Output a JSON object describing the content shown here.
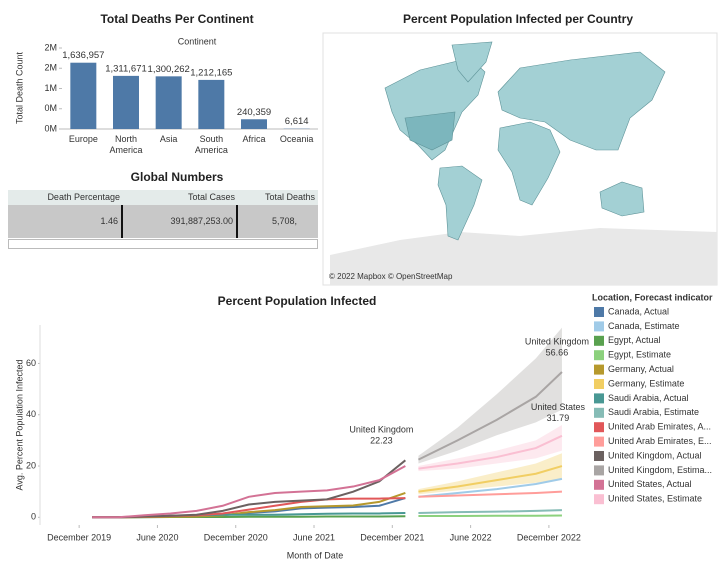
{
  "chart_data": [
    {
      "type": "bar",
      "title": "Total Deaths Per Continent",
      "header": "Continent",
      "y_label": "Total Death Count",
      "categories": [
        "Europe",
        "North America",
        "Asia",
        "South America",
        "Africa",
        "Oceania"
      ],
      "values": [
        1636957,
        1311671,
        1300262,
        1212165,
        240359,
        6614
      ],
      "value_labels": [
        "1,636,957",
        "1,311,671",
        "1,300,262",
        "1,212,165",
        "240,359",
        "6,614"
      ],
      "color": "#4e79a7",
      "ylim": [
        0,
        2000000
      ],
      "yticks": [
        {
          "value": 0,
          "label": "0M"
        },
        {
          "value": 500000,
          "label": "0M"
        },
        {
          "value": 1000000,
          "label": "1M"
        },
        {
          "value": 1500000,
          "label": "2M"
        },
        {
          "value": 2000000,
          "label": "2M"
        }
      ]
    },
    {
      "type": "line",
      "title": "Percent Population Infected",
      "x_label": "Month of Date",
      "y_label": "Avg. Percent Population Infected",
      "legend_title": "Location, Forecast indicator",
      "xlim": [
        "2019-09",
        "2023-02"
      ],
      "xticks": [
        {
          "value": "2019-12",
          "label": "December 2019"
        },
        {
          "value": "2020-06",
          "label": "June 2020"
        },
        {
          "value": "2020-12",
          "label": "December 2020"
        },
        {
          "value": "2021-06",
          "label": "June 2021"
        },
        {
          "value": "2021-12",
          "label": "December 2021"
        },
        {
          "value": "2022-06",
          "label": "June 2022"
        },
        {
          "value": "2022-12",
          "label": "December 2022"
        }
      ],
      "ylim": [
        -3,
        75
      ],
      "yticks": [
        0,
        20,
        40,
        60
      ],
      "series": [
        {
          "name": "Canada, Actual",
          "color": "#4e79a7",
          "x": [
            "2020-01",
            "2020-03",
            "2020-05",
            "2020-07",
            "2020-09",
            "2020-11",
            "2021-01",
            "2021-03",
            "2021-05",
            "2021-07",
            "2021-09",
            "2021-11",
            "2022-01"
          ],
          "values": [
            0,
            0,
            0.1,
            0.3,
            0.4,
            0.8,
            1.7,
            2.3,
            3.5,
            3.8,
            4,
            4.5,
            7.5
          ]
        },
        {
          "name": "Canada, Estimate",
          "color": "#a0cbe8",
          "x": [
            "2022-02",
            "2022-05",
            "2022-08",
            "2022-11",
            "2023-01"
          ],
          "values": [
            8,
            9.5,
            11,
            13,
            15
          ]
        },
        {
          "name": "Egypt, Actual",
          "color": "#59a14f",
          "x": [
            "2020-01",
            "2020-03",
            "2020-05",
            "2020-07",
            "2020-09",
            "2020-11",
            "2021-01",
            "2021-03",
            "2021-05",
            "2021-07",
            "2021-09",
            "2021-11",
            "2022-01"
          ],
          "values": [
            0,
            0,
            0,
            0.1,
            0.1,
            0.1,
            0.2,
            0.2,
            0.2,
            0.3,
            0.3,
            0.3,
            0.4
          ]
        },
        {
          "name": "Egypt, Estimate",
          "color": "#8cd17d",
          "x": [
            "2022-02",
            "2022-05",
            "2022-08",
            "2022-11",
            "2023-01"
          ],
          "values": [
            0.5,
            0.5,
            0.6,
            0.6,
            0.7
          ]
        },
        {
          "name": "Germany, Actual",
          "color": "#b6992d",
          "x": [
            "2020-01",
            "2020-03",
            "2020-05",
            "2020-07",
            "2020-09",
            "2020-11",
            "2021-01",
            "2021-03",
            "2021-05",
            "2021-07",
            "2021-09",
            "2021-11",
            "2022-01"
          ],
          "values": [
            0,
            0,
            0.1,
            0.2,
            0.3,
            0.8,
            2,
            2.8,
            4,
            4.3,
            4.6,
            6,
            9.5
          ]
        },
        {
          "name": "Germany, Estimate",
          "color": "#f1ce63",
          "x": [
            "2022-02",
            "2022-05",
            "2022-08",
            "2022-11",
            "2023-01"
          ],
          "values": [
            10,
            12,
            14.5,
            17,
            20
          ],
          "lower": [
            9,
            10.5,
            12,
            13.5,
            15
          ],
          "upper": [
            11,
            14,
            17.5,
            21,
            25
          ]
        },
        {
          "name": "Saudi Arabia, Actual",
          "color": "#499894",
          "x": [
            "2020-01",
            "2020-03",
            "2020-05",
            "2020-07",
            "2020-09",
            "2020-11",
            "2021-01",
            "2021-03",
            "2021-05",
            "2021-07",
            "2021-09",
            "2021-11",
            "2022-01"
          ],
          "values": [
            0,
            0,
            0.3,
            0.6,
            0.8,
            1,
            1,
            1,
            1.2,
            1.4,
            1.5,
            1.5,
            1.7
          ]
        },
        {
          "name": "Saudi Arabia, Estimate",
          "color": "#86bcb6",
          "x": [
            "2022-02",
            "2022-05",
            "2022-08",
            "2022-11",
            "2023-01"
          ],
          "values": [
            1.7,
            2,
            2.2,
            2.5,
            2.8
          ]
        },
        {
          "name": "United Arab Emirates, A...",
          "color": "#e15759",
          "x": [
            "2020-01",
            "2020-03",
            "2020-05",
            "2020-07",
            "2020-09",
            "2020-11",
            "2021-01",
            "2021-03",
            "2021-05",
            "2021-07",
            "2021-09",
            "2021-11",
            "2022-01"
          ],
          "values": [
            0,
            0,
            0.2,
            0.5,
            0.8,
            1.5,
            3,
            4.5,
            6,
            7,
            7.3,
            7.3,
            7.5
          ]
        },
        {
          "name": "United Arab Emirates, E...",
          "color": "#ff9d9a",
          "x": [
            "2022-02",
            "2022-05",
            "2022-08",
            "2022-11",
            "2023-01"
          ],
          "values": [
            8,
            8.5,
            9,
            9.5,
            10
          ]
        },
        {
          "name": "United Kingdom, Actual",
          "color": "#6b6160",
          "x": [
            "2020-01",
            "2020-03",
            "2020-05",
            "2020-07",
            "2020-09",
            "2020-11",
            "2021-01",
            "2021-03",
            "2021-05",
            "2021-07",
            "2021-09",
            "2021-11",
            "2022-01"
          ],
          "values": [
            0,
            0,
            0.3,
            0.6,
            1,
            2.5,
            5,
            6,
            6.5,
            7,
            10,
            14,
            22.23
          ]
        },
        {
          "name": "United Kingdom, Estima...",
          "color": "#a9a5a4",
          "x": [
            "2022-02",
            "2022-05",
            "2022-08",
            "2022-11",
            "2023-01"
          ],
          "values": [
            22.5,
            30,
            38,
            47,
            56.66
          ],
          "lower": [
            21,
            26,
            32,
            37,
            42
          ],
          "upper": [
            24,
            35,
            48,
            62,
            74
          ]
        },
        {
          "name": "United States, Actual",
          "color": "#d37295",
          "x": [
            "2020-01",
            "2020-03",
            "2020-05",
            "2020-07",
            "2020-09",
            "2020-11",
            "2021-01",
            "2021-03",
            "2021-05",
            "2021-07",
            "2021-09",
            "2021-11",
            "2022-01"
          ],
          "values": [
            0,
            0,
            0.8,
            1.5,
            2.5,
            4.5,
            8,
            9.5,
            10,
            10.5,
            12,
            14.5,
            20
          ]
        },
        {
          "name": "United States, Estimate",
          "color": "#fabfd2",
          "x": [
            "2022-02",
            "2022-05",
            "2022-08",
            "2022-11",
            "2023-01"
          ],
          "values": [
            19,
            21,
            23.5,
            27,
            31.79
          ],
          "lower": [
            18,
            19,
            21,
            23,
            26
          ],
          "upper": [
            20,
            23,
            26,
            30,
            36
          ]
        }
      ],
      "annotations": [
        {
          "text": "United Kingdom",
          "value": 22.23,
          "x": "2022-01"
        },
        {
          "text": "United Kingdom",
          "value": 56.66,
          "x": "2023-01"
        },
        {
          "text": "United States",
          "value": 31.79,
          "x": "2023-01"
        }
      ]
    }
  ],
  "table": {
    "title": "Global Numbers",
    "columns": [
      "Death Percentage",
      "Total Cases",
      "Total Deaths"
    ],
    "rows": [
      [
        "1.46",
        "391,887,253.00",
        "5,708,"
      ]
    ]
  },
  "map": {
    "title": "Percent Population Infected per Country",
    "attribution": "© 2022 Mapbox © OpenStreetMap"
  }
}
